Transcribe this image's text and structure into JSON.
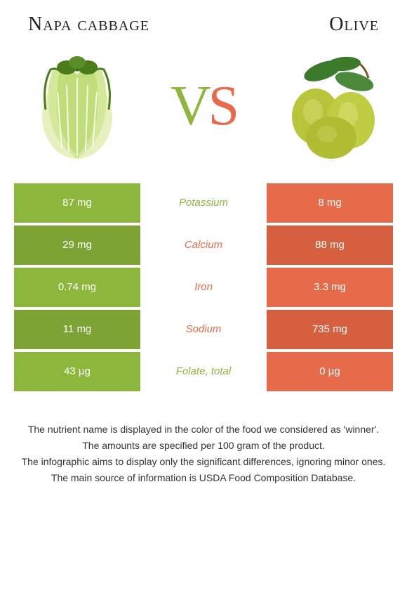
{
  "colors": {
    "left_food": "#8cb63c",
    "right_food": "#e66b4a",
    "left_dark": "#7ca334",
    "right_dark": "#d65f40",
    "text_dark": "#222222"
  },
  "header": {
    "left_title": "Napa cabbage",
    "right_title": "Olive",
    "vs": {
      "v": "V",
      "s": "S"
    }
  },
  "table": {
    "rows": [
      {
        "left": "87 mg",
        "mid": "Potassium",
        "right": "8 mg",
        "winner": "left"
      },
      {
        "left": "29 mg",
        "mid": "Calcium",
        "right": "88 mg",
        "winner": "right"
      },
      {
        "left": "0.74 mg",
        "mid": "Iron",
        "right": "3.3 mg",
        "winner": "right"
      },
      {
        "left": "11 mg",
        "mid": "Sodium",
        "right": "735 mg",
        "winner": "right"
      },
      {
        "left": "43 µg",
        "mid": "Folate, total",
        "right": "0 µg",
        "winner": "left"
      }
    ]
  },
  "footnotes": [
    "The nutrient name is displayed in the color of the food we considered as 'winner'.",
    "The amounts are specified per 100 gram of the product.",
    "The infographic aims to display only the significant differences, ignoring minor ones.",
    "The main source of information is USDA Food Composition Database."
  ]
}
